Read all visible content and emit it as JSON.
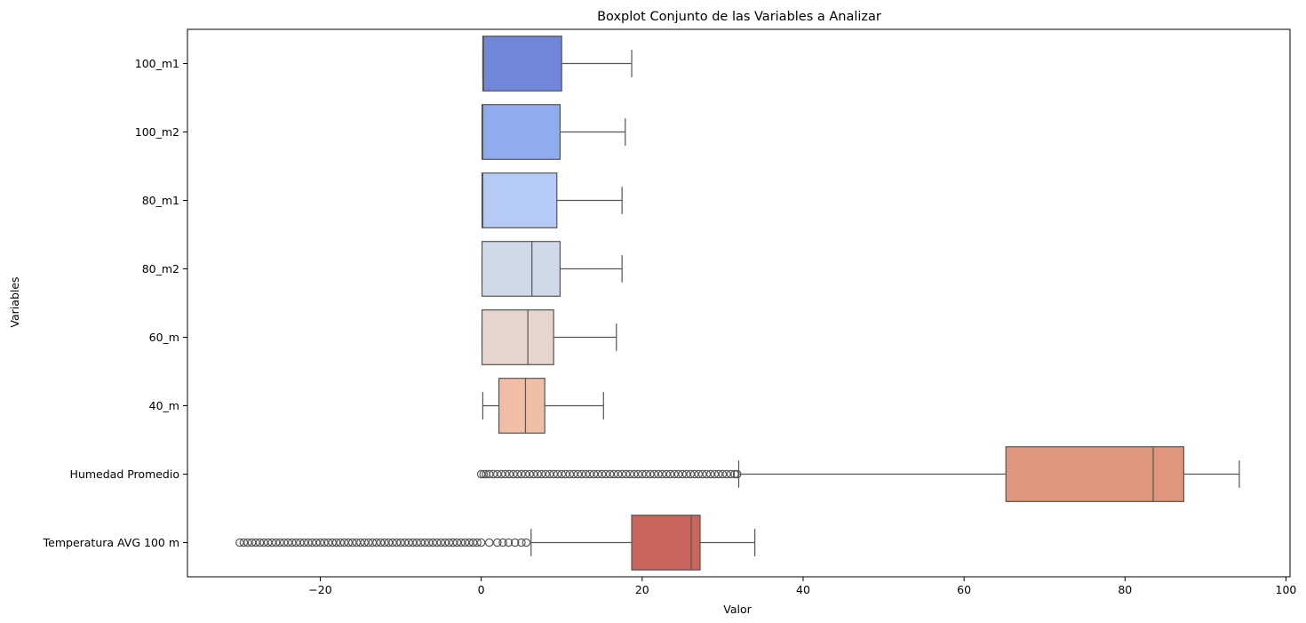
{
  "chart_data": {
    "type": "boxplot",
    "orientation": "horizontal",
    "title": "Boxplot Conjunto de las Variables a Analizar",
    "xlabel": "Valor",
    "ylabel": "Variables",
    "xlim": [
      -36.5,
      100.5
    ],
    "xticks": [
      -20,
      0,
      20,
      40,
      60,
      80,
      100
    ],
    "xtick_labels": [
      "−20",
      "0",
      "20",
      "40",
      "60",
      "80",
      "100"
    ],
    "grid": false,
    "series": [
      {
        "name": "100_m1",
        "color": "#6f86d9",
        "whisker_low": 0.2,
        "q1": 0.2,
        "median": 0.3,
        "q3": 10.0,
        "whisker_high": 18.7,
        "outliers": []
      },
      {
        "name": "100_m2",
        "color": "#8facef",
        "whisker_low": 0.1,
        "q1": 0.1,
        "median": 0.2,
        "q3": 9.8,
        "whisker_high": 17.9,
        "outliers": []
      },
      {
        "name": "80_m1",
        "color": "#b5cbf5",
        "whisker_low": 0.1,
        "q1": 0.1,
        "median": 0.2,
        "q3": 9.4,
        "whisker_high": 17.5,
        "outliers": []
      },
      {
        "name": "80_m2",
        "color": "#d0d9e8",
        "whisker_low": 0.1,
        "q1": 0.1,
        "median": 6.3,
        "q3": 9.8,
        "whisker_high": 17.5,
        "outliers": []
      },
      {
        "name": "60_m",
        "color": "#e5d5cc",
        "whisker_low": 0.1,
        "q1": 0.1,
        "median": 5.8,
        "q3": 9.0,
        "whisker_high": 16.8,
        "outliers": []
      },
      {
        "name": "40_m",
        "color": "#efbea5",
        "whisker_low": 0.2,
        "q1": 2.2,
        "median": 5.5,
        "q3": 7.9,
        "whisker_high": 15.2,
        "outliers": []
      },
      {
        "name": "Humedad Promedio",
        "color": "#e0967c",
        "whisker_low": 32.0,
        "q1": 65.2,
        "median": 83.5,
        "q3": 87.3,
        "whisker_high": 94.2,
        "outliers_range": [
          0.0,
          31.8
        ],
        "outliers": [
          0.0,
          0.3,
          0.6,
          1.0,
          1.5,
          2.0,
          2.5,
          3.0,
          3.5,
          4.0,
          4.5,
          5.0,
          5.5,
          6.0,
          6.5,
          7.0,
          7.5,
          8.0,
          8.5,
          9.0,
          9.5,
          10.0,
          10.5,
          11.0,
          11.5,
          12.0,
          12.5,
          13.0,
          13.5,
          14.0,
          14.5,
          15.0,
          15.5,
          16.0,
          16.5,
          17.0,
          17.5,
          18.0,
          18.5,
          19.0,
          19.5,
          20.0,
          20.5,
          21.0,
          21.5,
          22.0,
          22.5,
          23.0,
          23.5,
          24.0,
          24.5,
          25.0,
          25.5,
          26.0,
          26.5,
          27.0,
          27.5,
          28.0,
          28.5,
          29.0,
          29.5,
          30.0,
          30.5,
          31.0,
          31.5,
          31.8
        ]
      },
      {
        "name": "Temperatura AVG 100 m",
        "color": "#c9655a",
        "whisker_low": 6.2,
        "q1": 18.7,
        "median": 26.1,
        "q3": 27.2,
        "whisker_high": 34.0,
        "outliers_range": [
          -30.0,
          5.6
        ],
        "outliers": [
          -30.0,
          -29.5,
          -29.0,
          -28.5,
          -28.0,
          -27.5,
          -27.0,
          -26.5,
          -26.0,
          -25.5,
          -25.0,
          -24.5,
          -24.0,
          -23.5,
          -23.0,
          -22.5,
          -22.0,
          -21.5,
          -21.0,
          -20.5,
          -20.0,
          -19.5,
          -19.0,
          -18.5,
          -18.0,
          -17.5,
          -17.0,
          -16.5,
          -16.0,
          -15.5,
          -15.0,
          -14.5,
          -14.0,
          -13.5,
          -13.0,
          -12.5,
          -12.0,
          -11.5,
          -11.0,
          -10.5,
          -10.0,
          -9.5,
          -9.0,
          -8.5,
          -8.0,
          -7.5,
          -7.0,
          -6.5,
          -6.0,
          -5.5,
          -5.0,
          -4.5,
          -4.0,
          -3.5,
          -3.0,
          -2.5,
          -2.0,
          -1.5,
          -1.0,
          -0.5,
          0.0,
          1.0,
          2.0,
          2.7,
          3.4,
          4.2,
          5.0,
          5.6
        ]
      }
    ]
  }
}
